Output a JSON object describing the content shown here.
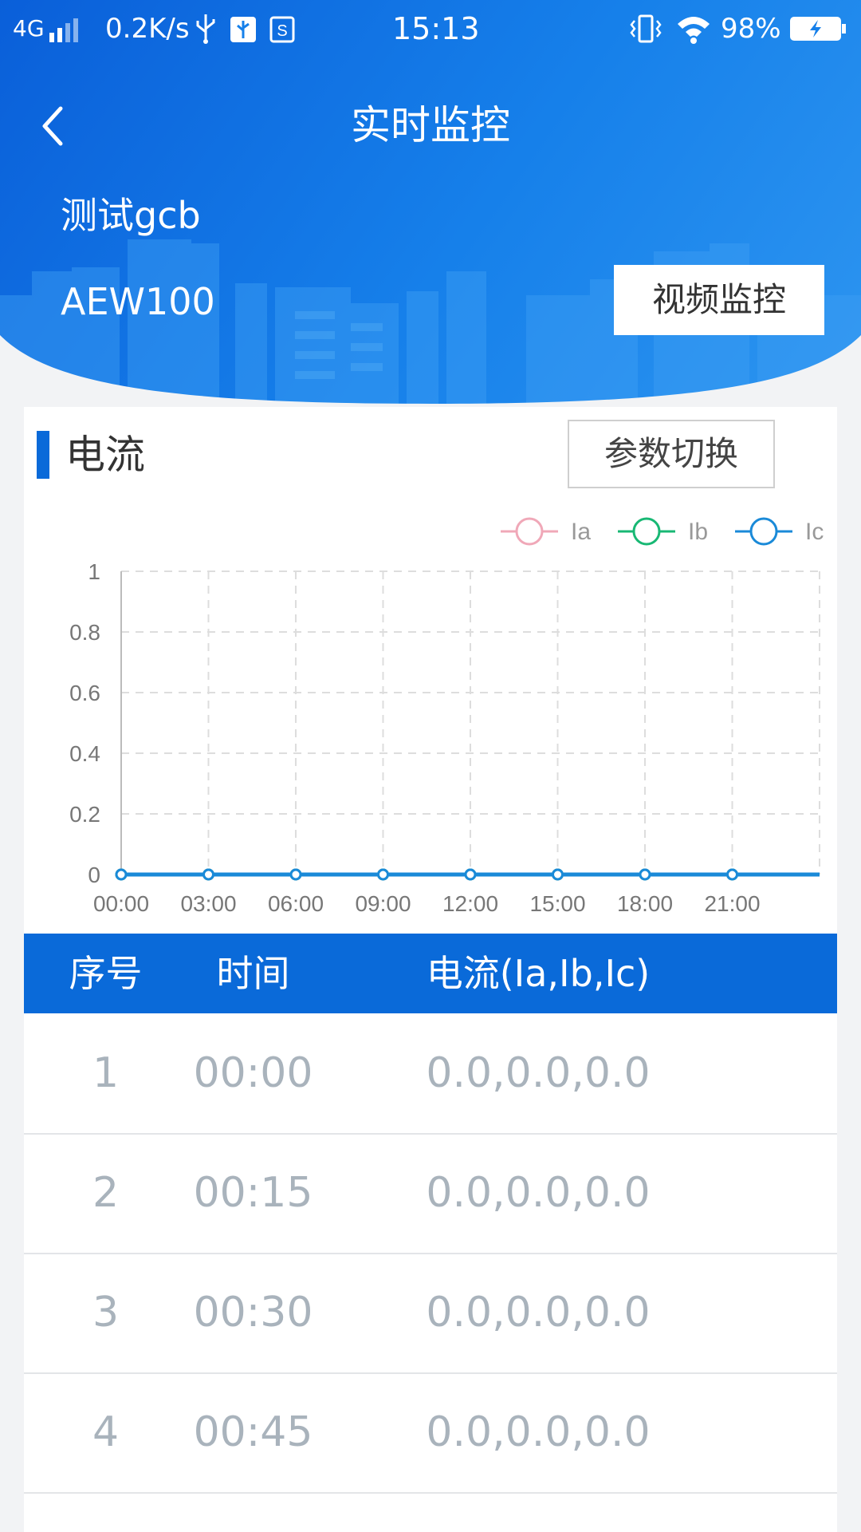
{
  "status_bar": {
    "network": "4G",
    "speed": "0.2K/s",
    "time": "15:13",
    "battery": "98%"
  },
  "header": {
    "title": "实时监控",
    "device_name": "测试gcb",
    "device_model": "AEW100",
    "video_button": "视频监控"
  },
  "section": {
    "title": "电流",
    "switch_button": "参数切换"
  },
  "chart_data": {
    "type": "line",
    "categories": [
      "00:00",
      "03:00",
      "06:00",
      "09:00",
      "12:00",
      "15:00",
      "18:00",
      "21:00"
    ],
    "y_ticks": [
      "0",
      "0.2",
      "0.4",
      "0.6",
      "0.8",
      "1"
    ],
    "ylim": [
      0,
      1
    ],
    "grid": true,
    "legend_position": "top-right",
    "series": [
      {
        "name": "Ia",
        "color": "#f0a8b8",
        "values": [
          0,
          0,
          0,
          0,
          0,
          0,
          0,
          0
        ]
      },
      {
        "name": "Ib",
        "color": "#18b874",
        "values": [
          0,
          0,
          0,
          0,
          0,
          0,
          0,
          0
        ]
      },
      {
        "name": "Ic",
        "color": "#1a8ad8",
        "values": [
          0,
          0,
          0,
          0,
          0,
          0,
          0,
          0
        ]
      }
    ]
  },
  "table": {
    "headers": [
      "序号",
      "时间",
      "电流(Ia,Ib,Ic)"
    ],
    "rows": [
      [
        "1",
        "00:00",
        "0.0,0.0,0.0"
      ],
      [
        "2",
        "00:15",
        "0.0,0.0,0.0"
      ],
      [
        "3",
        "00:30",
        "0.0,0.0,0.0"
      ],
      [
        "4",
        "00:45",
        "0.0,0.0,0.0"
      ]
    ]
  },
  "colors": {
    "primary": "#0a6ad9",
    "header_gradient_start": "#0a5fd9",
    "header_gradient_end": "#2d95f0",
    "table_text": "#a9b3bc"
  },
  "icons": {
    "back": "chevron-left-icon",
    "signal": "signal-bars-icon",
    "usb": "usb-icon",
    "wifi": "wifi-icon",
    "battery": "battery-charging-icon",
    "vibrate": "vibrate-icon"
  }
}
